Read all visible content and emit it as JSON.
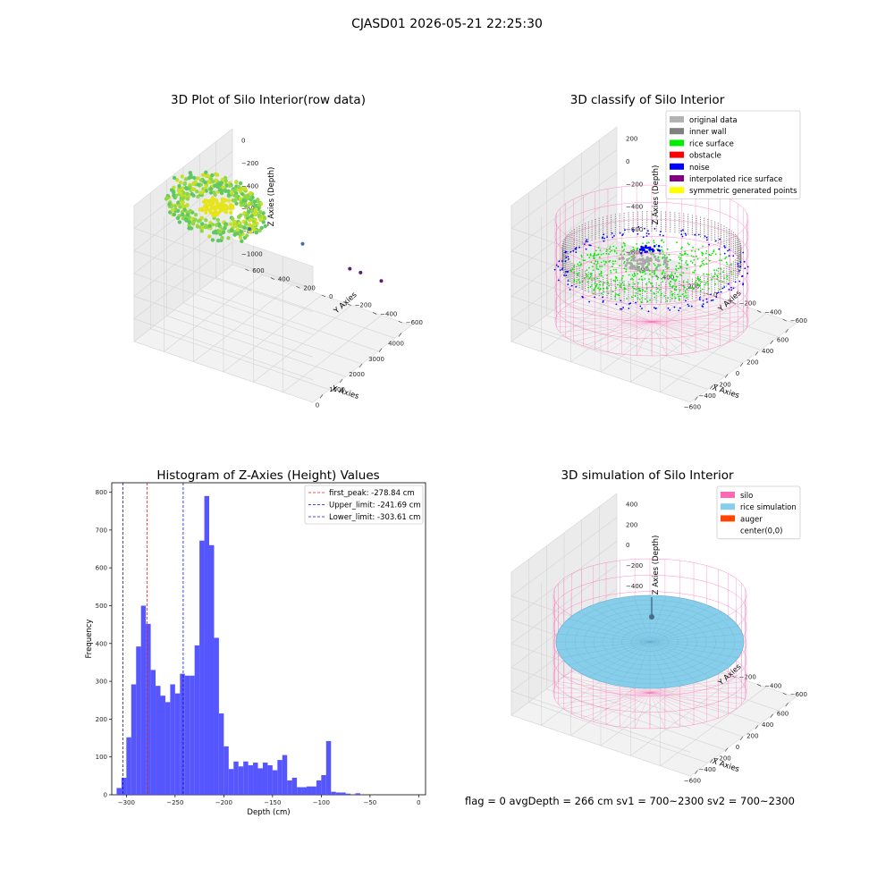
{
  "figure": {
    "title": "CJASD01 2026-05-21 22:25:30",
    "footer": "flag = 0     avgDepth = 266 cm  sv1 = 700~2300  sv2 = 700~2300"
  },
  "colors": {
    "histogram": "#4d4dff",
    "first_peak": "#e02020",
    "limits": "#1010cc",
    "silo": "#ff69b4",
    "rice": "#87ceeb",
    "auger": "#ff4500",
    "original": "#b3b3b3",
    "inner_wall": "#808080",
    "rice_surface": "#00ee00",
    "obstacle": "#ff0000",
    "noise": "#0000ff",
    "interp": "#800080",
    "symmetric": "#ffff00"
  },
  "chart_data": [
    {
      "type": "scatter",
      "title": "3D Plot of Silo Interior(row data)",
      "xlabel": "X Axies",
      "ylabel": "Y Axies",
      "zlabel": "Z Axies (Depth)",
      "xticks": [
        "0",
        "1000",
        "2000",
        "3000",
        "4000"
      ],
      "yticks": [
        "600",
        "400",
        "200",
        "0",
        "−200",
        "−400",
        "−600"
      ],
      "zticks": [
        "0",
        "−200",
        "−400",
        "−600",
        "−800",
        "−1000"
      ],
      "outliers": [
        {
          "x": 1500,
          "y": -100,
          "z": -1000
        },
        {
          "x": 2400,
          "y": -300,
          "z": -1050
        },
        {
          "x": 3300,
          "y": -420,
          "z": -1120
        },
        {
          "x": 3500,
          "y": -450,
          "z": -1130
        },
        {
          "x": 3900,
          "y": -500,
          "z": -1150
        }
      ]
    },
    {
      "type": "scatter",
      "title": "3D classify of Silo Interior",
      "xlabel": "X Axies",
      "ylabel": "Y Axies",
      "zlabel": "Z Axies (Depth)",
      "xticks": [
        "−600",
        "−400",
        "−200",
        "0",
        "200",
        "400",
        "600"
      ],
      "yticks": [
        "600",
        "400",
        "200",
        "0",
        "−200",
        "−400",
        "−600"
      ],
      "zticks": [
        "200",
        "0",
        "−200",
        "−400",
        "−600",
        "−800"
      ],
      "legend": [
        "original data",
        "inner wall",
        "rice surface",
        "obstacle",
        "noise",
        "interpolated rice surface",
        "symmetric generated points"
      ],
      "legend_position": "top-right"
    },
    {
      "type": "bar",
      "title": "Histogram of Z-Axies (Height) Values",
      "xlabel": "Depth (cm)",
      "ylabel": "Frequency",
      "xlim": [
        -315,
        7
      ],
      "ylim": [
        0,
        825
      ],
      "bin_width": 5,
      "bin_start": -310,
      "values": [
        18,
        45,
        152,
        292,
        392,
        500,
        452,
        330,
        288,
        262,
        245,
        292,
        268,
        320,
        315,
        315,
        395,
        672,
        790,
        660,
        415,
        215,
        128,
        68,
        88,
        75,
        88,
        78,
        85,
        70,
        85,
        78,
        65,
        92,
        105,
        38,
        45,
        20,
        20,
        22,
        22,
        38,
        52,
        142,
        8,
        6,
        6,
        3,
        0,
        4
      ],
      "xticks": [
        "−300",
        "−250",
        "−200",
        "−150",
        "−100",
        "−50",
        "0"
      ],
      "yticks": [
        "0",
        "100",
        "200",
        "300",
        "400",
        "500",
        "600",
        "700",
        "800"
      ],
      "vlines": [
        {
          "label": "first_peak: -278.84 cm",
          "x": -278.84,
          "style": "first_peak"
        },
        {
          "label": "Upper_limit: -241.69 cm",
          "x": -241.69,
          "style": "limits"
        },
        {
          "label": "Lower_limit: -303.61 cm",
          "x": -303.61,
          "style": "limits"
        }
      ],
      "legend_position": "top-right"
    },
    {
      "type": "scatter",
      "title": "3D simulation of Silo Interior",
      "xlabel": "X Axies",
      "ylabel": "Y Axies",
      "zlabel": "Z Axies (Depth)",
      "xticks": [
        "−600",
        "−400",
        "−200",
        "0",
        "200",
        "400",
        "600"
      ],
      "yticks": [
        "600",
        "400",
        "200",
        "0",
        "−200",
        "−400",
        "−600"
      ],
      "zticks": [
        "400",
        "200",
        "0",
        "−200",
        "−400",
        "−600",
        "−800"
      ],
      "legend": [
        "silo",
        "rice simulation",
        "auger",
        "center(0,0)"
      ],
      "legend_position": "top-right"
    }
  ]
}
